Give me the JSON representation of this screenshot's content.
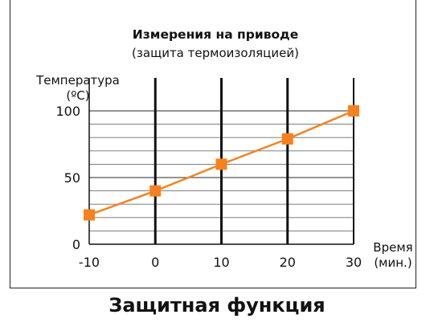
{
  "caption": "Защитная функция",
  "chart_data": {
    "type": "line",
    "title": "Измерения на приводе",
    "subtitle": "(защита термоизоляцией)",
    "ylabel_line1": "Температура",
    "ylabel_line2": "(ºС)",
    "xlabel_line1": "Время",
    "xlabel_line2": "(мин.)",
    "x": [
      -10,
      0,
      10,
      20,
      30
    ],
    "xlim": [
      -10,
      30
    ],
    "ylim": [
      0,
      100
    ],
    "x_ticks": [
      -10,
      0,
      10,
      20,
      30
    ],
    "x_tick_labels": [
      "-10",
      "0",
      "10",
      "20",
      "30"
    ],
    "y_ticks": [
      0,
      50,
      100
    ],
    "y_tick_labels": [
      "0",
      "50",
      "100"
    ],
    "series": [
      {
        "values": [
          22,
          40,
          60,
          79,
          100
        ]
      }
    ],
    "line_color": "#f5821f",
    "marker": "square",
    "grid": true
  }
}
